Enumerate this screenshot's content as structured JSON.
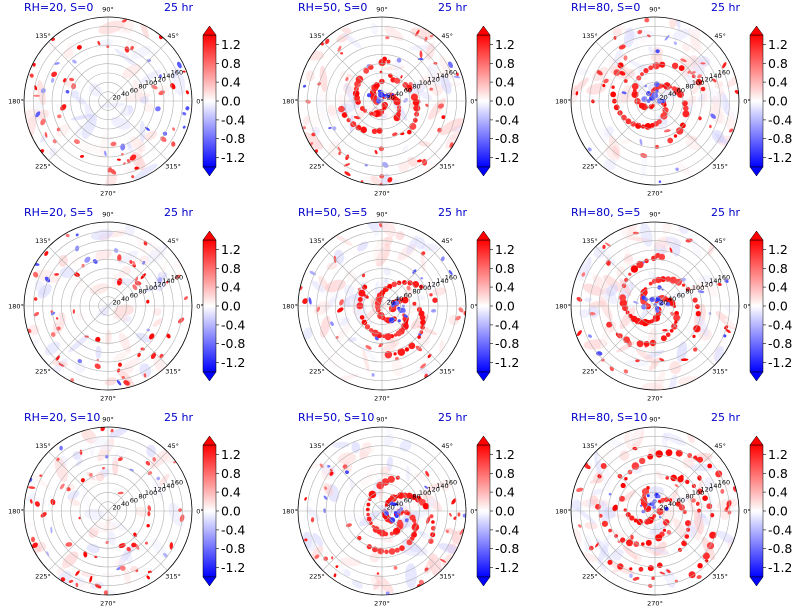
{
  "chart_data": {
    "type": "heatmap",
    "projection": "polar",
    "colormap": "bwr",
    "colormap_colors": {
      "low": "#0000ff",
      "mid": "#ffffff",
      "high": "#ff0000"
    },
    "value_range": [
      -1.4,
      1.4
    ],
    "colorbar_ticks": [
      "1.2",
      "0.8",
      "0.4",
      "0.0",
      "-0.4",
      "-0.8",
      "-1.2"
    ],
    "colorbar_extend": "both",
    "theta_ticks": [
      "0°",
      "45°",
      "90°",
      "135°",
      "180°",
      "225°",
      "270°",
      "315°"
    ],
    "radial_ticks": [
      "20",
      "40",
      "60",
      "80",
      "100",
      "120",
      "140",
      "160"
    ],
    "radial_range": [
      0,
      180
    ],
    "grid": true,
    "panels": [
      {
        "left_title": "RH=20, S=0",
        "right_title": "25 hr",
        "rh": 20,
        "s": 0,
        "pattern": "scattered"
      },
      {
        "left_title": "RH=50, S=0",
        "right_title": "25 hr",
        "rh": 50,
        "s": 0,
        "pattern": "scattered-bands"
      },
      {
        "left_title": "RH=80, S=0",
        "right_title": "25 hr",
        "rh": 80,
        "s": 0,
        "pattern": "spiral-core"
      },
      {
        "left_title": "RH=20, S=5",
        "right_title": "25 hr",
        "rh": 20,
        "s": 5,
        "pattern": "scattered"
      },
      {
        "left_title": "RH=50, S=5",
        "right_title": "25 hr",
        "rh": 50,
        "s": 5,
        "pattern": "asymmetric-core"
      },
      {
        "left_title": "RH=80, S=5",
        "right_title": "25 hr",
        "rh": 80,
        "s": 5,
        "pattern": "spiral-core"
      },
      {
        "left_title": "RH=20, S=10",
        "right_title": "25 hr",
        "rh": 20,
        "s": 10,
        "pattern": "scattered"
      },
      {
        "left_title": "RH=50, S=10",
        "right_title": "25 hr",
        "rh": 50,
        "s": 10,
        "pattern": "asymmetric-core"
      },
      {
        "left_title": "RH=80, S=10",
        "right_title": "25 hr",
        "rh": 80,
        "s": 10,
        "pattern": "spiral-wide"
      }
    ]
  }
}
